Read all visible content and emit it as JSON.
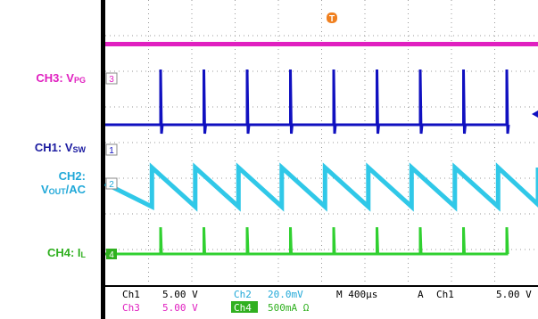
{
  "labels": [
    {
      "lines": [
        {
          "main": "CH3: V",
          "sub": "PG"
        }
      ],
      "color": "#e020c0"
    },
    {
      "lines": [
        {
          "main": "CH1: V",
          "sub": "SW"
        }
      ],
      "color": "#1a1aa0"
    },
    {
      "lines": [
        {
          "main": "CH2:"
        },
        {
          "main": "V",
          "sub": "OUT",
          "rest": "/AC"
        }
      ],
      "color": "#20a8d8"
    },
    {
      "lines": [
        {
          "main": "CH4: I",
          "sub": "L"
        }
      ],
      "color": "#30b020"
    }
  ],
  "markers": {
    "trigger": "T",
    "ch3": "3",
    "ch1": "1",
    "ch2": "2",
    "ch4": "4"
  },
  "readout": {
    "row1": [
      "Ch1",
      "5.00 V",
      "Ch2",
      "20.0mV",
      "M 400µs",
      "A",
      "Ch1",
      "5.00 V"
    ],
    "row2": [
      "Ch3",
      "5.00 V",
      "Ch4",
      "500mA Ω"
    ]
  }
}
